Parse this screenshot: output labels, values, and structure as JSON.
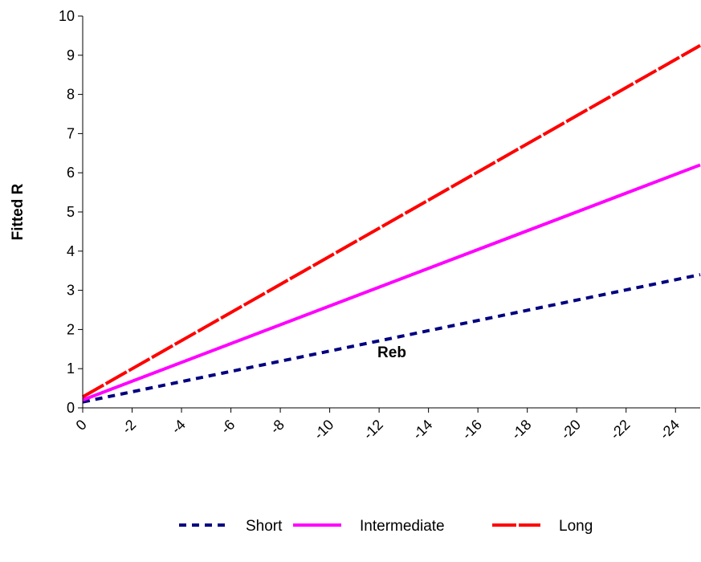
{
  "chart_data": {
    "type": "line",
    "title": "",
    "xlabel": "Reb",
    "ylabel": "Fitted R",
    "x_ticks": [
      "0",
      "-2",
      "-4",
      "-6",
      "-8",
      "-10",
      "-12",
      "-14",
      "-16",
      "-18",
      "-20",
      "-22",
      "-24"
    ],
    "y_ticks": [
      "0",
      "1",
      "2",
      "3",
      "4",
      "5",
      "6",
      "7",
      "8",
      "9",
      "10"
    ],
    "xlim": [
      0,
      -25
    ],
    "ylim": [
      0,
      10
    ],
    "grid": false,
    "legend_position": "bottom",
    "series": [
      {
        "name": "Short",
        "color": "#000080",
        "dash": "dashed",
        "x": [
          0,
          -25
        ],
        "y": [
          0.15,
          3.4
        ]
      },
      {
        "name": "Intermediate",
        "color": "#ff00ff",
        "dash": "solid",
        "x": [
          0,
          -25
        ],
        "y": [
          0.2,
          6.2
        ]
      },
      {
        "name": "Long",
        "color": "#ff0000",
        "dash": "long-dash",
        "x": [
          0,
          -25
        ],
        "y": [
          0.28,
          9.25
        ]
      }
    ]
  }
}
